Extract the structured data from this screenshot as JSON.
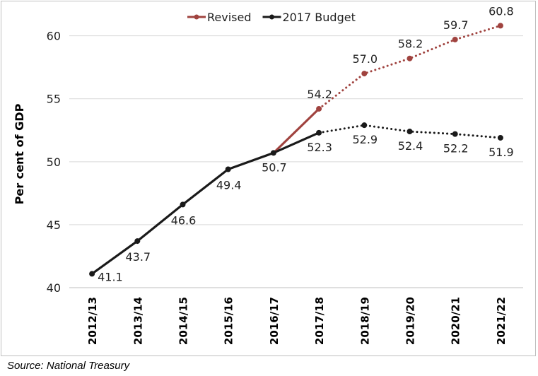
{
  "chart_data": {
    "type": "line",
    "categories": [
      "2012/13",
      "2013/14",
      "2014/15",
      "2015/16",
      "2016/17",
      "2017/18",
      "2018/19",
      "2019/20",
      "2020/21",
      "2021/22"
    ],
    "ylabel": "Per cent of GDP",
    "xlabel": "",
    "ylim": [
      40,
      62
    ],
    "yticks": [
      40,
      45,
      50,
      55,
      60
    ],
    "grid": true,
    "legend": "top-center",
    "solid_through": "2017/18",
    "series": [
      {
        "name": "Revised",
        "color": "#a0433f",
        "values": [
          null,
          null,
          null,
          null,
          50.7,
          54.2,
          57.0,
          58.2,
          59.7,
          60.8
        ],
        "labels": [
          null,
          null,
          null,
          null,
          null,
          "54.2",
          "57.0",
          "58.2",
          "59.7",
          "60.8"
        ]
      },
      {
        "name": "2017 Budget",
        "color": "#1a1a1a",
        "values": [
          41.1,
          43.7,
          46.6,
          49.4,
          50.7,
          52.3,
          52.9,
          52.4,
          52.2,
          51.9
        ],
        "labels": [
          "41.1",
          "43.7",
          "46.6",
          "49.4",
          "50.7",
          "52.3",
          "52.9",
          "52.4",
          "52.2",
          "51.9"
        ]
      }
    ]
  },
  "source": "Source: National Treasury"
}
